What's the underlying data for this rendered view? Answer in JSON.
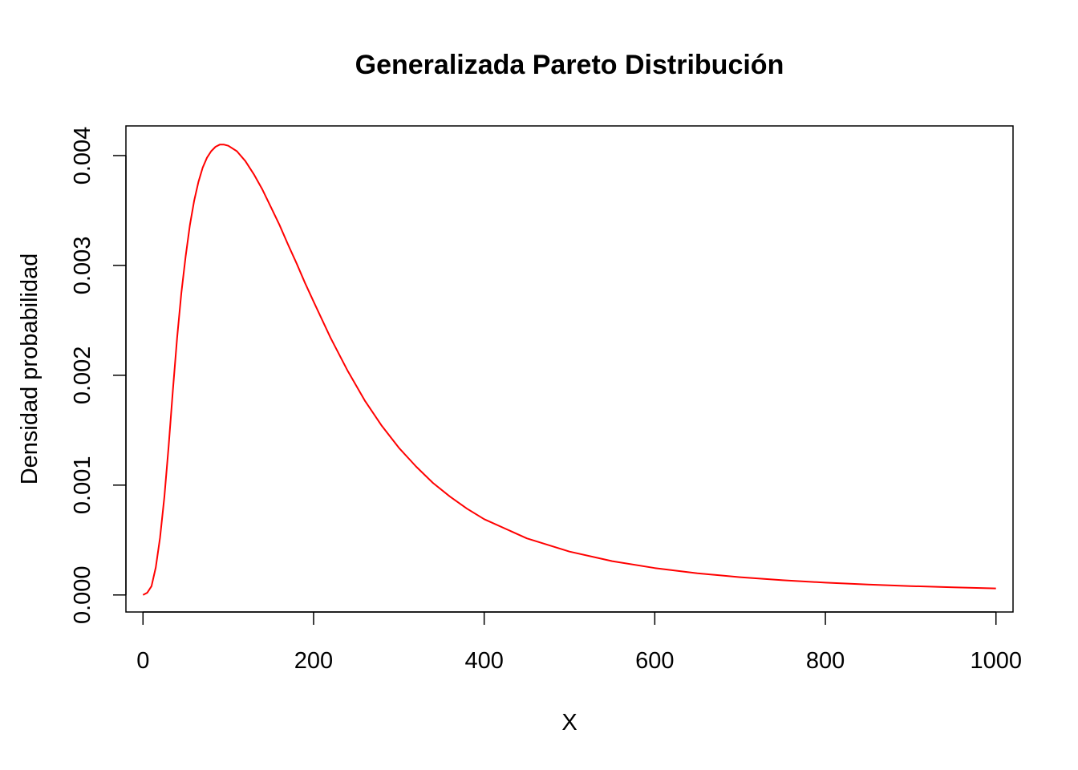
{
  "chart_data": {
    "type": "line",
    "title": "Generalizada Pareto Distribución",
    "xlabel": "X",
    "ylabel": "Densidad probabilidad",
    "xlim": [
      -20,
      1020
    ],
    "ylim": [
      -0.000155,
      0.00427
    ],
    "x_ticks": [
      0,
      200,
      400,
      600,
      800,
      1000
    ],
    "x_tick_labels": [
      "0",
      "200",
      "400",
      "600",
      "800",
      "1000"
    ],
    "y_ticks": [
      0,
      0.001,
      0.002,
      0.003,
      0.004
    ],
    "y_tick_labels": [
      "0.000",
      "0.001",
      "0.002",
      "0.003",
      "0.004"
    ],
    "grid": false,
    "legend": "none",
    "series": [
      {
        "color": "#ff0000",
        "x": [
          0,
          5,
          10,
          15,
          20,
          25,
          30,
          35,
          40,
          45,
          50,
          55,
          60,
          65,
          70,
          75,
          80,
          85,
          90,
          95,
          100,
          110,
          120,
          130,
          140,
          150,
          160,
          170,
          180,
          190,
          200,
          220,
          240,
          260,
          280,
          300,
          320,
          340,
          360,
          380,
          400,
          450,
          500,
          550,
          600,
          650,
          700,
          750,
          800,
          850,
          900,
          950,
          1000
        ],
        "values": [
          0.0,
          2e-05,
          8e-05,
          0.00025,
          0.00052,
          0.00089,
          0.00135,
          0.00186,
          0.00234,
          0.00275,
          0.00308,
          0.00337,
          0.00359,
          0.00376,
          0.00389,
          0.00398,
          0.00404,
          0.00408,
          0.0041,
          0.0041,
          0.00409,
          0.00404,
          0.00395,
          0.00383,
          0.00369,
          0.00353,
          0.00337,
          0.00319,
          0.00302,
          0.00284,
          0.00267,
          0.00234,
          0.00204,
          0.00177,
          0.00154,
          0.00134,
          0.00117,
          0.00102,
          0.000895,
          0.000785,
          0.00069,
          0.000515,
          0.000395,
          0.000308,
          0.000245,
          0.000198,
          0.000162,
          0.000134,
          0.000112,
          9.45e-05,
          8.05e-05,
          6.92e-05,
          6e-05
        ]
      }
    ]
  }
}
